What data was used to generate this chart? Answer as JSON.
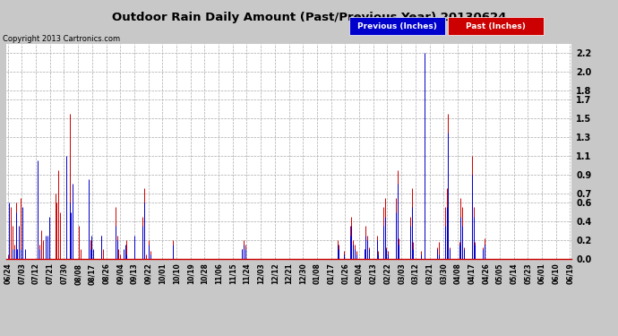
{
  "title": "Outdoor Rain Daily Amount (Past/Previous Year) 20130624",
  "copyright": "Copyright 2013 Cartronics.com",
  "yticks": [
    0.0,
    0.2,
    0.4,
    0.6,
    0.7,
    0.9,
    1.1,
    1.3,
    1.5,
    1.7,
    1.8,
    2.0,
    2.2
  ],
  "ylim": [
    0.0,
    2.3
  ],
  "legend_labels": [
    "Previous (Inches)",
    "Past (Inches)"
  ],
  "legend_bg_colors": [
    "#0000cc",
    "#cc0000"
  ],
  "previous_color": "#0000cc",
  "past_color": "#cc0000",
  "dark_color": "#333333",
  "plot_bg_color": "#ffffff",
  "fig_bg_color": "#c8c8c8",
  "grid_color": "#aaaaaa",
  "xtick_labels": [
    "06/24",
    "07/03",
    "07/12",
    "07/21",
    "07/30",
    "08/08",
    "08/17",
    "08/26",
    "09/04",
    "09/13",
    "09/22",
    "10/01",
    "10/10",
    "10/19",
    "10/28",
    "11/06",
    "11/15",
    "11/24",
    "12/03",
    "12/12",
    "12/21",
    "12/30",
    "01/08",
    "01/17",
    "01/26",
    "02/04",
    "02/13",
    "02/22",
    "03/03",
    "03/12",
    "03/21",
    "03/30",
    "04/08",
    "04/17",
    "04/26",
    "05/05",
    "05/14",
    "05/23",
    "06/01",
    "06/10",
    "06/19"
  ],
  "previous_data": [
    0.0,
    0.6,
    0.0,
    0.1,
    0.1,
    0.5,
    0.1,
    0.35,
    0.1,
    0.55,
    0.0,
    0.1,
    0.0,
    0.0,
    0.0,
    0.0,
    0.0,
    0.0,
    0.0,
    1.05,
    0.1,
    0.0,
    0.0,
    0.0,
    0.25,
    0.25,
    0.45,
    0.0,
    0.0,
    0.0,
    0.0,
    0.0,
    0.0,
    0.0,
    0.0,
    0.0,
    0.0,
    1.1,
    0.0,
    0.6,
    0.5,
    0.8,
    0.0,
    0.0,
    0.0,
    0.0,
    0.0,
    0.0,
    0.0,
    0.0,
    0.0,
    0.85,
    0.1,
    0.25,
    0.1,
    0.0,
    0.0,
    0.0,
    0.0,
    0.25,
    0.0,
    0.0,
    0.0,
    0.0,
    0.0,
    0.0,
    0.0,
    0.0,
    0.35,
    0.2,
    0.0,
    0.0,
    0.0,
    0.1,
    0.15,
    0.05,
    0.0,
    0.0,
    0.0,
    0.0,
    0.25,
    0.0,
    0.0,
    0.0,
    0.0,
    0.35,
    0.6,
    0.0,
    0.0,
    0.15,
    0.05,
    0.0,
    0.0,
    0.0,
    0.0,
    0.0,
    0.0,
    0.0,
    0.0,
    0.0,
    0.0,
    0.0,
    0.0,
    0.0,
    0.15,
    0.0,
    0.0,
    0.0,
    0.0,
    0.0,
    0.0,
    0.0,
    0.0,
    0.0,
    0.0,
    0.0,
    0.0,
    0.0,
    0.0,
    0.0,
    0.0,
    0.0,
    0.0,
    0.0,
    0.0,
    0.0,
    0.0,
    0.0,
    0.0,
    0.0,
    0.0,
    0.0,
    0.0,
    0.0,
    0.0,
    0.0,
    0.0,
    0.0,
    0.0,
    0.0,
    0.0,
    0.0,
    0.0,
    0.0,
    0.0,
    0.0,
    0.0,
    0.0,
    0.1,
    0.15,
    0.1,
    0.0,
    0.0,
    0.0,
    0.0,
    0.0,
    0.0,
    0.0,
    0.0,
    0.0,
    0.0,
    0.0,
    0.0,
    0.0,
    0.0,
    0.0,
    0.0,
    0.0,
    0.0,
    0.0,
    0.0,
    0.0,
    0.0,
    0.0,
    0.0,
    0.0,
    0.0,
    0.0,
    0.0,
    0.0,
    0.0,
    0.0,
    0.0,
    0.0,
    0.0,
    0.0,
    0.0,
    0.0,
    0.0,
    0.0,
    0.0,
    0.0,
    0.0,
    0.0,
    0.0,
    0.0,
    0.0,
    0.0,
    0.0,
    0.0,
    0.0,
    0.0,
    0.0,
    0.0,
    0.0,
    0.0,
    0.0,
    0.0,
    0.15,
    0.1,
    0.0,
    0.0,
    0.05,
    0.0,
    0.0,
    0.0,
    0.25,
    0.35,
    0.15,
    0.1,
    0.05,
    0.0,
    0.0,
    0.0,
    0.0,
    0.1,
    0.25,
    0.2,
    0.1,
    0.0,
    0.0,
    0.0,
    0.0,
    0.2,
    0.05,
    0.0,
    0.0,
    0.35,
    0.45,
    0.1,
    0.05,
    0.0,
    0.0,
    0.0,
    0.0,
    0.5,
    0.8,
    0.15,
    0.0,
    0.0,
    0.0,
    0.0,
    0.0,
    0.0,
    0.35,
    0.55,
    0.1,
    0.0,
    0.0,
    0.0,
    0.0,
    0.05,
    0.0,
    2.2,
    0.0,
    0.0,
    0.0,
    0.0,
    0.0,
    0.0,
    0.0,
    0.1,
    0.05,
    0.0,
    0.0,
    0.0,
    0.35,
    0.55,
    1.35,
    0.1,
    0.0,
    0.0,
    0.0,
    0.0,
    0.0,
    0.15,
    0.45,
    0.35,
    0.1,
    0.0,
    0.0,
    0.0,
    0.0,
    0.9,
    0.45,
    0.15,
    0.0,
    0.0,
    0.0,
    0.0,
    0.1,
    0.15,
    0.0,
    0.0,
    0.0,
    0.0,
    0.0,
    0.0,
    0.0,
    0.0,
    0.0,
    0.0,
    0.0,
    0.0,
    0.0,
    0.0,
    0.0,
    0.0,
    0.0,
    0.0,
    0.0,
    0.0,
    0.0,
    0.0,
    0.0,
    0.0,
    0.0,
    0.0,
    0.0,
    0.0,
    0.0,
    0.0,
    0.0,
    0.0,
    0.0,
    0.0,
    0.0,
    0.0,
    0.0,
    0.0,
    0.0,
    0.0,
    0.0,
    0.0,
    0.0,
    0.0,
    0.0,
    0.0,
    0.0,
    0.0,
    0.0,
    0.0,
    0.0,
    0.0,
    0.0,
    0.0
  ],
  "past_data": [
    0.05,
    0.0,
    0.55,
    0.35,
    0.15,
    0.6,
    0.1,
    0.1,
    0.65,
    0.4,
    0.0,
    0.0,
    0.0,
    0.0,
    0.0,
    0.0,
    0.0,
    0.0,
    0.0,
    0.85,
    0.15,
    0.3,
    0.2,
    0.0,
    0.0,
    0.0,
    0.0,
    0.0,
    0.0,
    0.0,
    0.7,
    0.6,
    0.95,
    0.5,
    0.0,
    0.0,
    0.0,
    0.0,
    0.0,
    1.55,
    0.1,
    0.1,
    0.0,
    0.0,
    0.0,
    0.35,
    0.1,
    0.0,
    0.0,
    0.0,
    0.0,
    0.6,
    0.2,
    0.1,
    0.0,
    0.0,
    0.0,
    0.0,
    0.0,
    0.25,
    0.1,
    0.0,
    0.0,
    0.0,
    0.0,
    0.0,
    0.0,
    0.0,
    0.55,
    0.25,
    0.1,
    0.05,
    0.0,
    0.0,
    0.1,
    0.2,
    0.0,
    0.0,
    0.0,
    0.0,
    0.2,
    0.0,
    0.0,
    0.0,
    0.0,
    0.45,
    0.75,
    0.05,
    0.0,
    0.2,
    0.08,
    0.0,
    0.0,
    0.0,
    0.0,
    0.0,
    0.0,
    0.0,
    0.0,
    0.0,
    0.0,
    0.0,
    0.0,
    0.0,
    0.2,
    0.0,
    0.0,
    0.0,
    0.0,
    0.0,
    0.0,
    0.0,
    0.0,
    0.0,
    0.0,
    0.0,
    0.0,
    0.0,
    0.0,
    0.0,
    0.0,
    0.0,
    0.0,
    0.0,
    0.0,
    0.0,
    0.0,
    0.0,
    0.0,
    0.0,
    0.0,
    0.0,
    0.0,
    0.0,
    0.0,
    0.0,
    0.0,
    0.0,
    0.0,
    0.0,
    0.0,
    0.0,
    0.0,
    0.0,
    0.0,
    0.0,
    0.0,
    0.0,
    0.1,
    0.2,
    0.15,
    0.0,
    0.0,
    0.0,
    0.0,
    0.0,
    0.0,
    0.0,
    0.0,
    0.0,
    0.0,
    0.0,
    0.0,
    0.0,
    0.0,
    0.0,
    0.0,
    0.0,
    0.0,
    0.0,
    0.0,
    0.0,
    0.0,
    0.0,
    0.0,
    0.0,
    0.0,
    0.0,
    0.0,
    0.0,
    0.0,
    0.0,
    0.0,
    0.0,
    0.0,
    0.0,
    0.0,
    0.0,
    0.0,
    0.0,
    0.0,
    0.0,
    0.0,
    0.0,
    0.0,
    0.0,
    0.0,
    0.0,
    0.0,
    0.0,
    0.0,
    0.0,
    0.0,
    0.0,
    0.0,
    0.0,
    0.0,
    0.0,
    0.2,
    0.15,
    0.0,
    0.0,
    0.08,
    0.0,
    0.0,
    0.0,
    0.35,
    0.45,
    0.2,
    0.15,
    0.08,
    0.0,
    0.0,
    0.0,
    0.0,
    0.1,
    0.35,
    0.25,
    0.12,
    0.0,
    0.0,
    0.0,
    0.0,
    0.25,
    0.08,
    0.0,
    0.0,
    0.55,
    0.65,
    0.12,
    0.08,
    0.0,
    0.0,
    0.0,
    0.0,
    0.65,
    0.95,
    0.22,
    0.0,
    0.0,
    0.0,
    0.0,
    0.0,
    0.0,
    0.45,
    0.75,
    0.18,
    0.0,
    0.0,
    0.0,
    0.0,
    0.08,
    0.0,
    0.45,
    0.0,
    0.0,
    0.0,
    0.0,
    0.0,
    0.0,
    0.0,
    0.12,
    0.18,
    0.0,
    0.0,
    0.0,
    0.55,
    0.75,
    1.55,
    0.12,
    0.0,
    0.0,
    0.0,
    0.0,
    0.0,
    0.18,
    0.65,
    0.55,
    0.12,
    0.0,
    0.0,
    0.0,
    0.0,
    1.1,
    0.55,
    0.18,
    0.0,
    0.0,
    0.0,
    0.0,
    0.12,
    0.22,
    0.0,
    0.0,
    0.0,
    0.0,
    0.0,
    0.0,
    0.0,
    0.0,
    0.0,
    0.0,
    0.0,
    0.0,
    0.0,
    0.0,
    0.0,
    0.0,
    0.0,
    0.0,
    0.0,
    0.0,
    0.0,
    0.0,
    0.0,
    0.0,
    0.0,
    0.0,
    0.0,
    0.0,
    0.0,
    0.0,
    0.0,
    0.0,
    0.0,
    0.0,
    0.0,
    0.0,
    0.0,
    0.0,
    0.0,
    0.0,
    0.0,
    0.0,
    0.0,
    0.0,
    0.0,
    0.0,
    0.0,
    0.0,
    0.0,
    0.0,
    0.0,
    0.0,
    0.0,
    0.0
  ]
}
